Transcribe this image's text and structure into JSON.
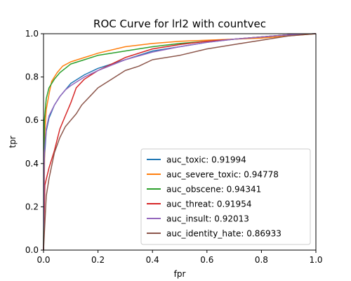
{
  "chart_data": {
    "type": "line",
    "title": "ROC Curve for lrl2 with countvec",
    "xlabel": "fpr",
    "ylabel": "tpr",
    "xlim": [
      0,
      1
    ],
    "ylim": [
      0,
      1
    ],
    "xticks": [
      "0.0",
      "0.2",
      "0.4",
      "0.6",
      "0.8",
      "1.0"
    ],
    "yticks": [
      "0.0",
      "0.2",
      "0.4",
      "0.6",
      "0.8",
      "1.0"
    ],
    "grid": false,
    "legend_position": "lower-right",
    "series": [
      {
        "name": "auc_toxic: 0.91994",
        "color": "#1f77b4",
        "points": [
          [
            0,
            0
          ],
          [
            0.003,
            0.42
          ],
          [
            0.01,
            0.55
          ],
          [
            0.02,
            0.61
          ],
          [
            0.04,
            0.67
          ],
          [
            0.06,
            0.71
          ],
          [
            0.08,
            0.74
          ],
          [
            0.1,
            0.77
          ],
          [
            0.15,
            0.81
          ],
          [
            0.2,
            0.84
          ],
          [
            0.3,
            0.88
          ],
          [
            0.4,
            0.92
          ],
          [
            0.5,
            0.94
          ],
          [
            0.6,
            0.96
          ],
          [
            0.7,
            0.975
          ],
          [
            0.8,
            0.985
          ],
          [
            0.9,
            0.995
          ],
          [
            1,
            1
          ]
        ]
      },
      {
        "name": "auc_severe_toxic: 0.94778",
        "color": "#ff7f0e",
        "points": [
          [
            0,
            0
          ],
          [
            0.005,
            0.55
          ],
          [
            0.01,
            0.65
          ],
          [
            0.02,
            0.72
          ],
          [
            0.03,
            0.78
          ],
          [
            0.05,
            0.82
          ],
          [
            0.07,
            0.85
          ],
          [
            0.1,
            0.87
          ],
          [
            0.15,
            0.89
          ],
          [
            0.2,
            0.91
          ],
          [
            0.3,
            0.94
          ],
          [
            0.4,
            0.955
          ],
          [
            0.5,
            0.965
          ],
          [
            0.6,
            0.97
          ],
          [
            0.7,
            0.975
          ],
          [
            0.8,
            0.98
          ],
          [
            0.9,
            0.99
          ],
          [
            1,
            1
          ]
        ]
      },
      {
        "name": "auc_obscene: 0.94341",
        "color": "#2ca02c",
        "points": [
          [
            0,
            0
          ],
          [
            0.003,
            0.6
          ],
          [
            0.01,
            0.7
          ],
          [
            0.02,
            0.75
          ],
          [
            0.04,
            0.79
          ],
          [
            0.06,
            0.82
          ],
          [
            0.08,
            0.84
          ],
          [
            0.1,
            0.86
          ],
          [
            0.15,
            0.88
          ],
          [
            0.2,
            0.9
          ],
          [
            0.3,
            0.92
          ],
          [
            0.4,
            0.94
          ],
          [
            0.5,
            0.955
          ],
          [
            0.6,
            0.965
          ],
          [
            0.7,
            0.975
          ],
          [
            0.8,
            0.985
          ],
          [
            0.9,
            0.995
          ],
          [
            1,
            1
          ]
        ]
      },
      {
        "name": "auc_threat: 0.91954",
        "color": "#d62728",
        "points": [
          [
            0,
            0
          ],
          [
            0.005,
            0.3
          ],
          [
            0.02,
            0.38
          ],
          [
            0.04,
            0.46
          ],
          [
            0.06,
            0.56
          ],
          [
            0.08,
            0.62
          ],
          [
            0.1,
            0.68
          ],
          [
            0.12,
            0.75
          ],
          [
            0.15,
            0.79
          ],
          [
            0.2,
            0.83
          ],
          [
            0.3,
            0.89
          ],
          [
            0.4,
            0.93
          ],
          [
            0.5,
            0.95
          ],
          [
            0.6,
            0.965
          ],
          [
            0.7,
            0.975
          ],
          [
            0.8,
            0.985
          ],
          [
            0.9,
            0.995
          ],
          [
            1,
            1
          ]
        ]
      },
      {
        "name": "auc_insult: 0.92013",
        "color": "#9467bd",
        "points": [
          [
            0,
            0
          ],
          [
            0.003,
            0.45
          ],
          [
            0.01,
            0.56
          ],
          [
            0.02,
            0.62
          ],
          [
            0.04,
            0.67
          ],
          [
            0.06,
            0.71
          ],
          [
            0.08,
            0.74
          ],
          [
            0.1,
            0.76
          ],
          [
            0.15,
            0.8
          ],
          [
            0.2,
            0.83
          ],
          [
            0.3,
            0.88
          ],
          [
            0.4,
            0.915
          ],
          [
            0.5,
            0.94
          ],
          [
            0.6,
            0.96
          ],
          [
            0.7,
            0.975
          ],
          [
            0.8,
            0.985
          ],
          [
            0.9,
            0.995
          ],
          [
            1,
            1
          ]
        ]
      },
      {
        "name": "auc_identity_hate: 0.86933",
        "color": "#8c564b",
        "points": [
          [
            0,
            0
          ],
          [
            0.003,
            0.08
          ],
          [
            0.01,
            0.25
          ],
          [
            0.02,
            0.33
          ],
          [
            0.04,
            0.45
          ],
          [
            0.06,
            0.52
          ],
          [
            0.08,
            0.57
          ],
          [
            0.1,
            0.6
          ],
          [
            0.12,
            0.63
          ],
          [
            0.14,
            0.67
          ],
          [
            0.17,
            0.71
          ],
          [
            0.2,
            0.75
          ],
          [
            0.25,
            0.79
          ],
          [
            0.3,
            0.83
          ],
          [
            0.35,
            0.85
          ],
          [
            0.4,
            0.88
          ],
          [
            0.5,
            0.9
          ],
          [
            0.6,
            0.93
          ],
          [
            0.7,
            0.95
          ],
          [
            0.8,
            0.97
          ],
          [
            0.9,
            0.99
          ],
          [
            1,
            1
          ]
        ]
      }
    ]
  }
}
